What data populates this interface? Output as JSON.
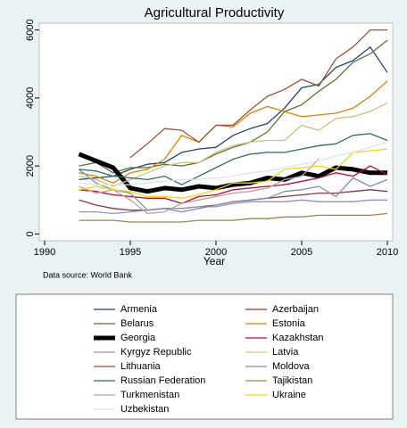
{
  "chart_data": {
    "type": "line",
    "title": "Agricultural Productivity",
    "x_label": "Year",
    "note": "Data source: World Bank",
    "x": [
      1992,
      1993,
      1994,
      1995,
      1996,
      1997,
      1998,
      1999,
      2000,
      2001,
      2002,
      2003,
      2004,
      2005,
      2006,
      2007,
      2008,
      2009,
      2010
    ],
    "xlim": [
      1990,
      2010
    ],
    "xticks": [
      1990,
      1995,
      2000,
      2005,
      2010
    ],
    "ylim": [
      -200,
      6200
    ],
    "yticks": [
      0,
      2000,
      4000,
      6000
    ],
    "series": [
      {
        "name": "Armenia",
        "color": "#1a476f",
        "values": [
          1600,
          1650,
          1700,
          1900,
          2050,
          2100,
          2400,
          2500,
          2550,
          2900,
          3100,
          3250,
          3700,
          4300,
          4400,
          4900,
          5100,
          5500,
          4750
        ]
      },
      {
        "name": "Azerbaijan",
        "color": "#90353b",
        "values": [
          1000,
          850,
          750,
          700,
          700,
          750,
          750,
          800,
          850,
          950,
          1000,
          1050,
          1100,
          1150,
          1200,
          1200,
          1250,
          1300,
          1250
        ]
      },
      {
        "name": "Belarus",
        "color": "#55752f",
        "values": [
          2000,
          2100,
          1800,
          1950,
          1950,
          2050,
          2000,
          2100,
          2350,
          2550,
          2700,
          3000,
          3600,
          3800,
          4200,
          4550,
          5050,
          5300,
          5700
        ]
      },
      {
        "name": "Estonia",
        "color": "#e37e00",
        "values": [
          1800,
          1700,
          1500,
          1800,
          1900,
          2200,
          2900,
          2700,
          3200,
          3150,
          3550,
          3750,
          3600,
          3450,
          3500,
          3550,
          3700,
          4050,
          4500
        ]
      },
      {
        "name": "Georgia",
        "color": "#000000",
        "width": 5,
        "values": [
          2350,
          2150,
          1950,
          1350,
          1250,
          1350,
          1300,
          1400,
          1350,
          1450,
          1500,
          1650,
          1600,
          1800,
          1700,
          1950,
          1900,
          1800,
          1800
        ]
      },
      {
        "name": "Kazakhstan",
        "color": "#c10534",
        "values": [
          1300,
          1250,
          1150,
          1100,
          1050,
          1050,
          900,
          1100,
          1150,
          1300,
          1350,
          1400,
          1450,
          1550,
          1650,
          1800,
          1700,
          2000,
          1750
        ]
      },
      {
        "name": "Kyrgyz Republic",
        "color": "#938dd2",
        "values": [
          650,
          650,
          600,
          650,
          700,
          750,
          750,
          800,
          800,
          900,
          950,
          950,
          950,
          1000,
          950,
          950,
          950,
          1000,
          1000
        ]
      },
      {
        "name": "Latvia",
        "color": "#cac27e",
        "values": [
          1700,
          1600,
          1400,
          1600,
          1800,
          2000,
          2100,
          2100,
          2400,
          2600,
          2700,
          2750,
          2750,
          3200,
          3050,
          3400,
          3450,
          3600,
          3850
        ]
      },
      {
        "name": "Lithuania",
        "color": "#a0522d",
        "values": [
          null,
          null,
          null,
          2250,
          2650,
          3100,
          3050,
          2700,
          3200,
          3200,
          3650,
          4050,
          4250,
          4550,
          4350,
          5150,
          5500,
          6000,
          6000
        ]
      },
      {
        "name": "Moldova",
        "color": "#7b92a8",
        "values": [
          1900,
          1500,
          1300,
          1200,
          700,
          750,
          650,
          750,
          850,
          950,
          1000,
          1050,
          1250,
          1300,
          1400,
          1100,
          1650,
          1400,
          1600
        ]
      },
      {
        "name": "Russian Federation",
        "color": "#2d6d66",
        "values": [
          1900,
          1850,
          1700,
          1650,
          1600,
          1700,
          1450,
          1700,
          1950,
          2200,
          2350,
          2400,
          2400,
          2500,
          2600,
          2650,
          2900,
          2950,
          2750
        ]
      },
      {
        "name": "Tajikistan",
        "color": "#9c8847",
        "values": [
          400,
          400,
          400,
          350,
          350,
          350,
          350,
          400,
          400,
          400,
          450,
          450,
          500,
          500,
          550,
          550,
          550,
          550,
          600
        ]
      },
      {
        "name": "Turkmenistan",
        "color": "#bfa19c",
        "values": [
          1400,
          1200,
          1300,
          1000,
          600,
          650,
          900,
          1000,
          1100,
          1200,
          1250,
          1350,
          1600,
          1700,
          2200,
          null,
          null,
          null,
          null
        ]
      },
      {
        "name": "Ukraine",
        "color": "#ffd200",
        "values": [
          1300,
          1400,
          1300,
          1250,
          1100,
          1100,
          1050,
          1150,
          1300,
          1500,
          1500,
          1550,
          1900,
          1950,
          2000,
          1900,
          2400,
          2450,
          2500
        ]
      },
      {
        "name": "Uzbekistan",
        "color": "#d9e6eb",
        "values": [
          1500,
          1450,
          1450,
          1450,
          1500,
          1550,
          1600,
          1600,
          1650,
          1700,
          1800,
          1850,
          1950,
          2050,
          2150,
          2300,
          2400,
          2550,
          2700
        ]
      }
    ]
  }
}
